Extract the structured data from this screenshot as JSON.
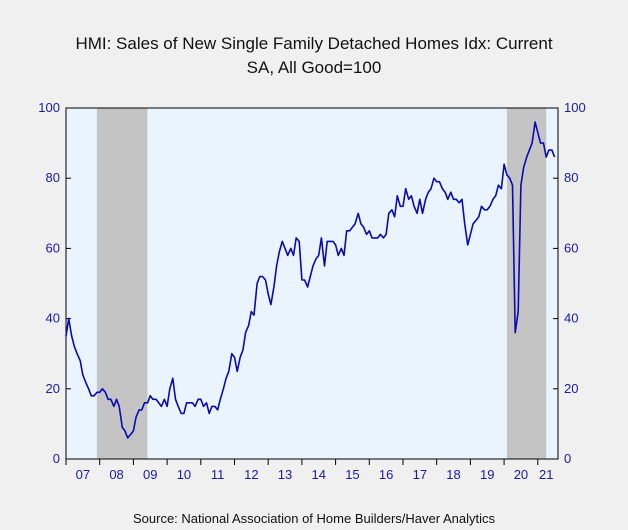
{
  "chart_data": {
    "type": "line",
    "title": "HMI: Sales of New Single Family Detached Homes Idx: Current",
    "subtitle": "SA, All Good=100",
    "source": "Source:  National Association of Home Builders/Haver Analytics",
    "x_labels": [
      "07",
      "08",
      "09",
      "10",
      "11",
      "12",
      "13",
      "14",
      "15",
      "16",
      "17",
      "18",
      "19",
      "20",
      "21"
    ],
    "ylim": [
      0,
      100
    ],
    "y_ticks_left": [
      "0",
      "20",
      "40",
      "60",
      "80",
      "100"
    ],
    "y_ticks_right": [
      "0",
      "20",
      "40",
      "60",
      "80",
      "100"
    ],
    "recessions": [
      {
        "start": "2007-12",
        "end": "2009-06"
      },
      {
        "start": "2020-02",
        "end": "2021-04"
      }
    ],
    "colors": {
      "line": "#0a0ab4",
      "plot_bg": "#eaf4fe",
      "recession": "#c4c4c4",
      "axis_text": "#1a1aa8"
    },
    "series": [
      {
        "values": [
          [
            2007.0,
            35
          ],
          [
            2007.08,
            40
          ],
          [
            2007.17,
            35
          ],
          [
            2007.25,
            32
          ],
          [
            2007.33,
            30
          ],
          [
            2007.42,
            28
          ],
          [
            2007.5,
            24
          ],
          [
            2007.58,
            22
          ],
          [
            2007.67,
            20
          ],
          [
            2007.75,
            18
          ],
          [
            2007.83,
            18
          ],
          [
            2007.92,
            19
          ],
          [
            2008.0,
            19
          ],
          [
            2008.08,
            20
          ],
          [
            2008.17,
            19
          ],
          [
            2008.25,
            17
          ],
          [
            2008.33,
            17
          ],
          [
            2008.42,
            15
          ],
          [
            2008.5,
            17
          ],
          [
            2008.58,
            15
          ],
          [
            2008.67,
            9
          ],
          [
            2008.75,
            8
          ],
          [
            2008.83,
            6
          ],
          [
            2008.92,
            7
          ],
          [
            2009.0,
            8
          ],
          [
            2009.08,
            12
          ],
          [
            2009.17,
            14
          ],
          [
            2009.25,
            14
          ],
          [
            2009.33,
            16
          ],
          [
            2009.42,
            16
          ],
          [
            2009.5,
            18
          ],
          [
            2009.58,
            17
          ],
          [
            2009.67,
            17
          ],
          [
            2009.75,
            16
          ],
          [
            2009.83,
            15
          ],
          [
            2009.92,
            17
          ],
          [
            2010.0,
            15
          ],
          [
            2010.08,
            20
          ],
          [
            2010.17,
            23
          ],
          [
            2010.25,
            17
          ],
          [
            2010.33,
            15
          ],
          [
            2010.42,
            13
          ],
          [
            2010.5,
            13
          ],
          [
            2010.58,
            16
          ],
          [
            2010.67,
            16
          ],
          [
            2010.75,
            16
          ],
          [
            2010.83,
            15
          ],
          [
            2010.92,
            17
          ],
          [
            2011.0,
            17
          ],
          [
            2011.08,
            15
          ],
          [
            2011.17,
            16
          ],
          [
            2011.25,
            13
          ],
          [
            2011.33,
            15
          ],
          [
            2011.42,
            15
          ],
          [
            2011.5,
            14
          ],
          [
            2011.58,
            17
          ],
          [
            2011.67,
            20
          ],
          [
            2011.75,
            23
          ],
          [
            2011.83,
            25
          ],
          [
            2011.92,
            30
          ],
          [
            2012.0,
            29
          ],
          [
            2012.08,
            25
          ],
          [
            2012.17,
            29
          ],
          [
            2012.25,
            31
          ],
          [
            2012.33,
            36
          ],
          [
            2012.42,
            38
          ],
          [
            2012.5,
            42
          ],
          [
            2012.58,
            41
          ],
          [
            2012.67,
            50
          ],
          [
            2012.75,
            52
          ],
          [
            2012.83,
            52
          ],
          [
            2012.92,
            51
          ],
          [
            2013.0,
            47
          ],
          [
            2013.08,
            44
          ],
          [
            2013.17,
            49
          ],
          [
            2013.25,
            55
          ],
          [
            2013.33,
            59
          ],
          [
            2013.42,
            62
          ],
          [
            2013.5,
            60
          ],
          [
            2013.58,
            58
          ],
          [
            2013.67,
            60
          ],
          [
            2013.75,
            58
          ],
          [
            2013.83,
            63
          ],
          [
            2013.92,
            62
          ],
          [
            2014.0,
            51
          ],
          [
            2014.08,
            51
          ],
          [
            2014.17,
            49
          ],
          [
            2014.25,
            52
          ],
          [
            2014.33,
            55
          ],
          [
            2014.42,
            57
          ],
          [
            2014.5,
            58
          ],
          [
            2014.58,
            63
          ],
          [
            2014.67,
            55
          ],
          [
            2014.75,
            62
          ],
          [
            2014.83,
            62
          ],
          [
            2014.92,
            62
          ],
          [
            2015.0,
            61
          ],
          [
            2015.08,
            58
          ],
          [
            2015.17,
            60
          ],
          [
            2015.25,
            58
          ],
          [
            2015.33,
            65
          ],
          [
            2015.42,
            65
          ],
          [
            2015.5,
            66
          ],
          [
            2015.58,
            67
          ],
          [
            2015.67,
            70
          ],
          [
            2015.75,
            67
          ],
          [
            2015.83,
            66
          ],
          [
            2015.92,
            64
          ],
          [
            2016.0,
            65
          ],
          [
            2016.08,
            63
          ],
          [
            2016.17,
            63
          ],
          [
            2016.25,
            63
          ],
          [
            2016.33,
            64
          ],
          [
            2016.42,
            63
          ],
          [
            2016.5,
            64
          ],
          [
            2016.58,
            70
          ],
          [
            2016.67,
            71
          ],
          [
            2016.75,
            69
          ],
          [
            2016.83,
            75
          ],
          [
            2016.92,
            72
          ],
          [
            2017.0,
            72
          ],
          [
            2017.08,
            77
          ],
          [
            2017.17,
            74
          ],
          [
            2017.25,
            75
          ],
          [
            2017.33,
            72
          ],
          [
            2017.42,
            70
          ],
          [
            2017.5,
            74
          ],
          [
            2017.58,
            70
          ],
          [
            2017.67,
            74
          ],
          [
            2017.75,
            76
          ],
          [
            2017.83,
            77
          ],
          [
            2017.92,
            80
          ],
          [
            2018.0,
            79
          ],
          [
            2018.08,
            79
          ],
          [
            2018.17,
            77
          ],
          [
            2018.25,
            76
          ],
          [
            2018.33,
            74
          ],
          [
            2018.42,
            76
          ],
          [
            2018.5,
            74
          ],
          [
            2018.58,
            74
          ],
          [
            2018.67,
            73
          ],
          [
            2018.75,
            74
          ],
          [
            2018.83,
            67
          ],
          [
            2018.92,
            61
          ],
          [
            2019.0,
            64
          ],
          [
            2019.08,
            67
          ],
          [
            2019.17,
            68
          ],
          [
            2019.25,
            69
          ],
          [
            2019.33,
            72
          ],
          [
            2019.42,
            71
          ],
          [
            2019.5,
            71
          ],
          [
            2019.58,
            72
          ],
          [
            2019.67,
            74
          ],
          [
            2019.75,
            75
          ],
          [
            2019.83,
            78
          ],
          [
            2019.92,
            77
          ],
          [
            2020.0,
            84
          ],
          [
            2020.08,
            81
          ],
          [
            2020.17,
            80
          ],
          [
            2020.25,
            78
          ],
          [
            2020.33,
            36
          ],
          [
            2020.42,
            42
          ],
          [
            2020.5,
            78
          ],
          [
            2020.58,
            83
          ],
          [
            2020.67,
            86
          ],
          [
            2020.75,
            88
          ],
          [
            2020.83,
            90
          ],
          [
            2020.92,
            96
          ],
          [
            2021.0,
            93
          ],
          [
            2021.08,
            90
          ],
          [
            2021.17,
            90
          ],
          [
            2021.25,
            86
          ],
          [
            2021.33,
            88
          ],
          [
            2021.42,
            88
          ],
          [
            2021.5,
            86
          ]
        ]
      }
    ]
  }
}
